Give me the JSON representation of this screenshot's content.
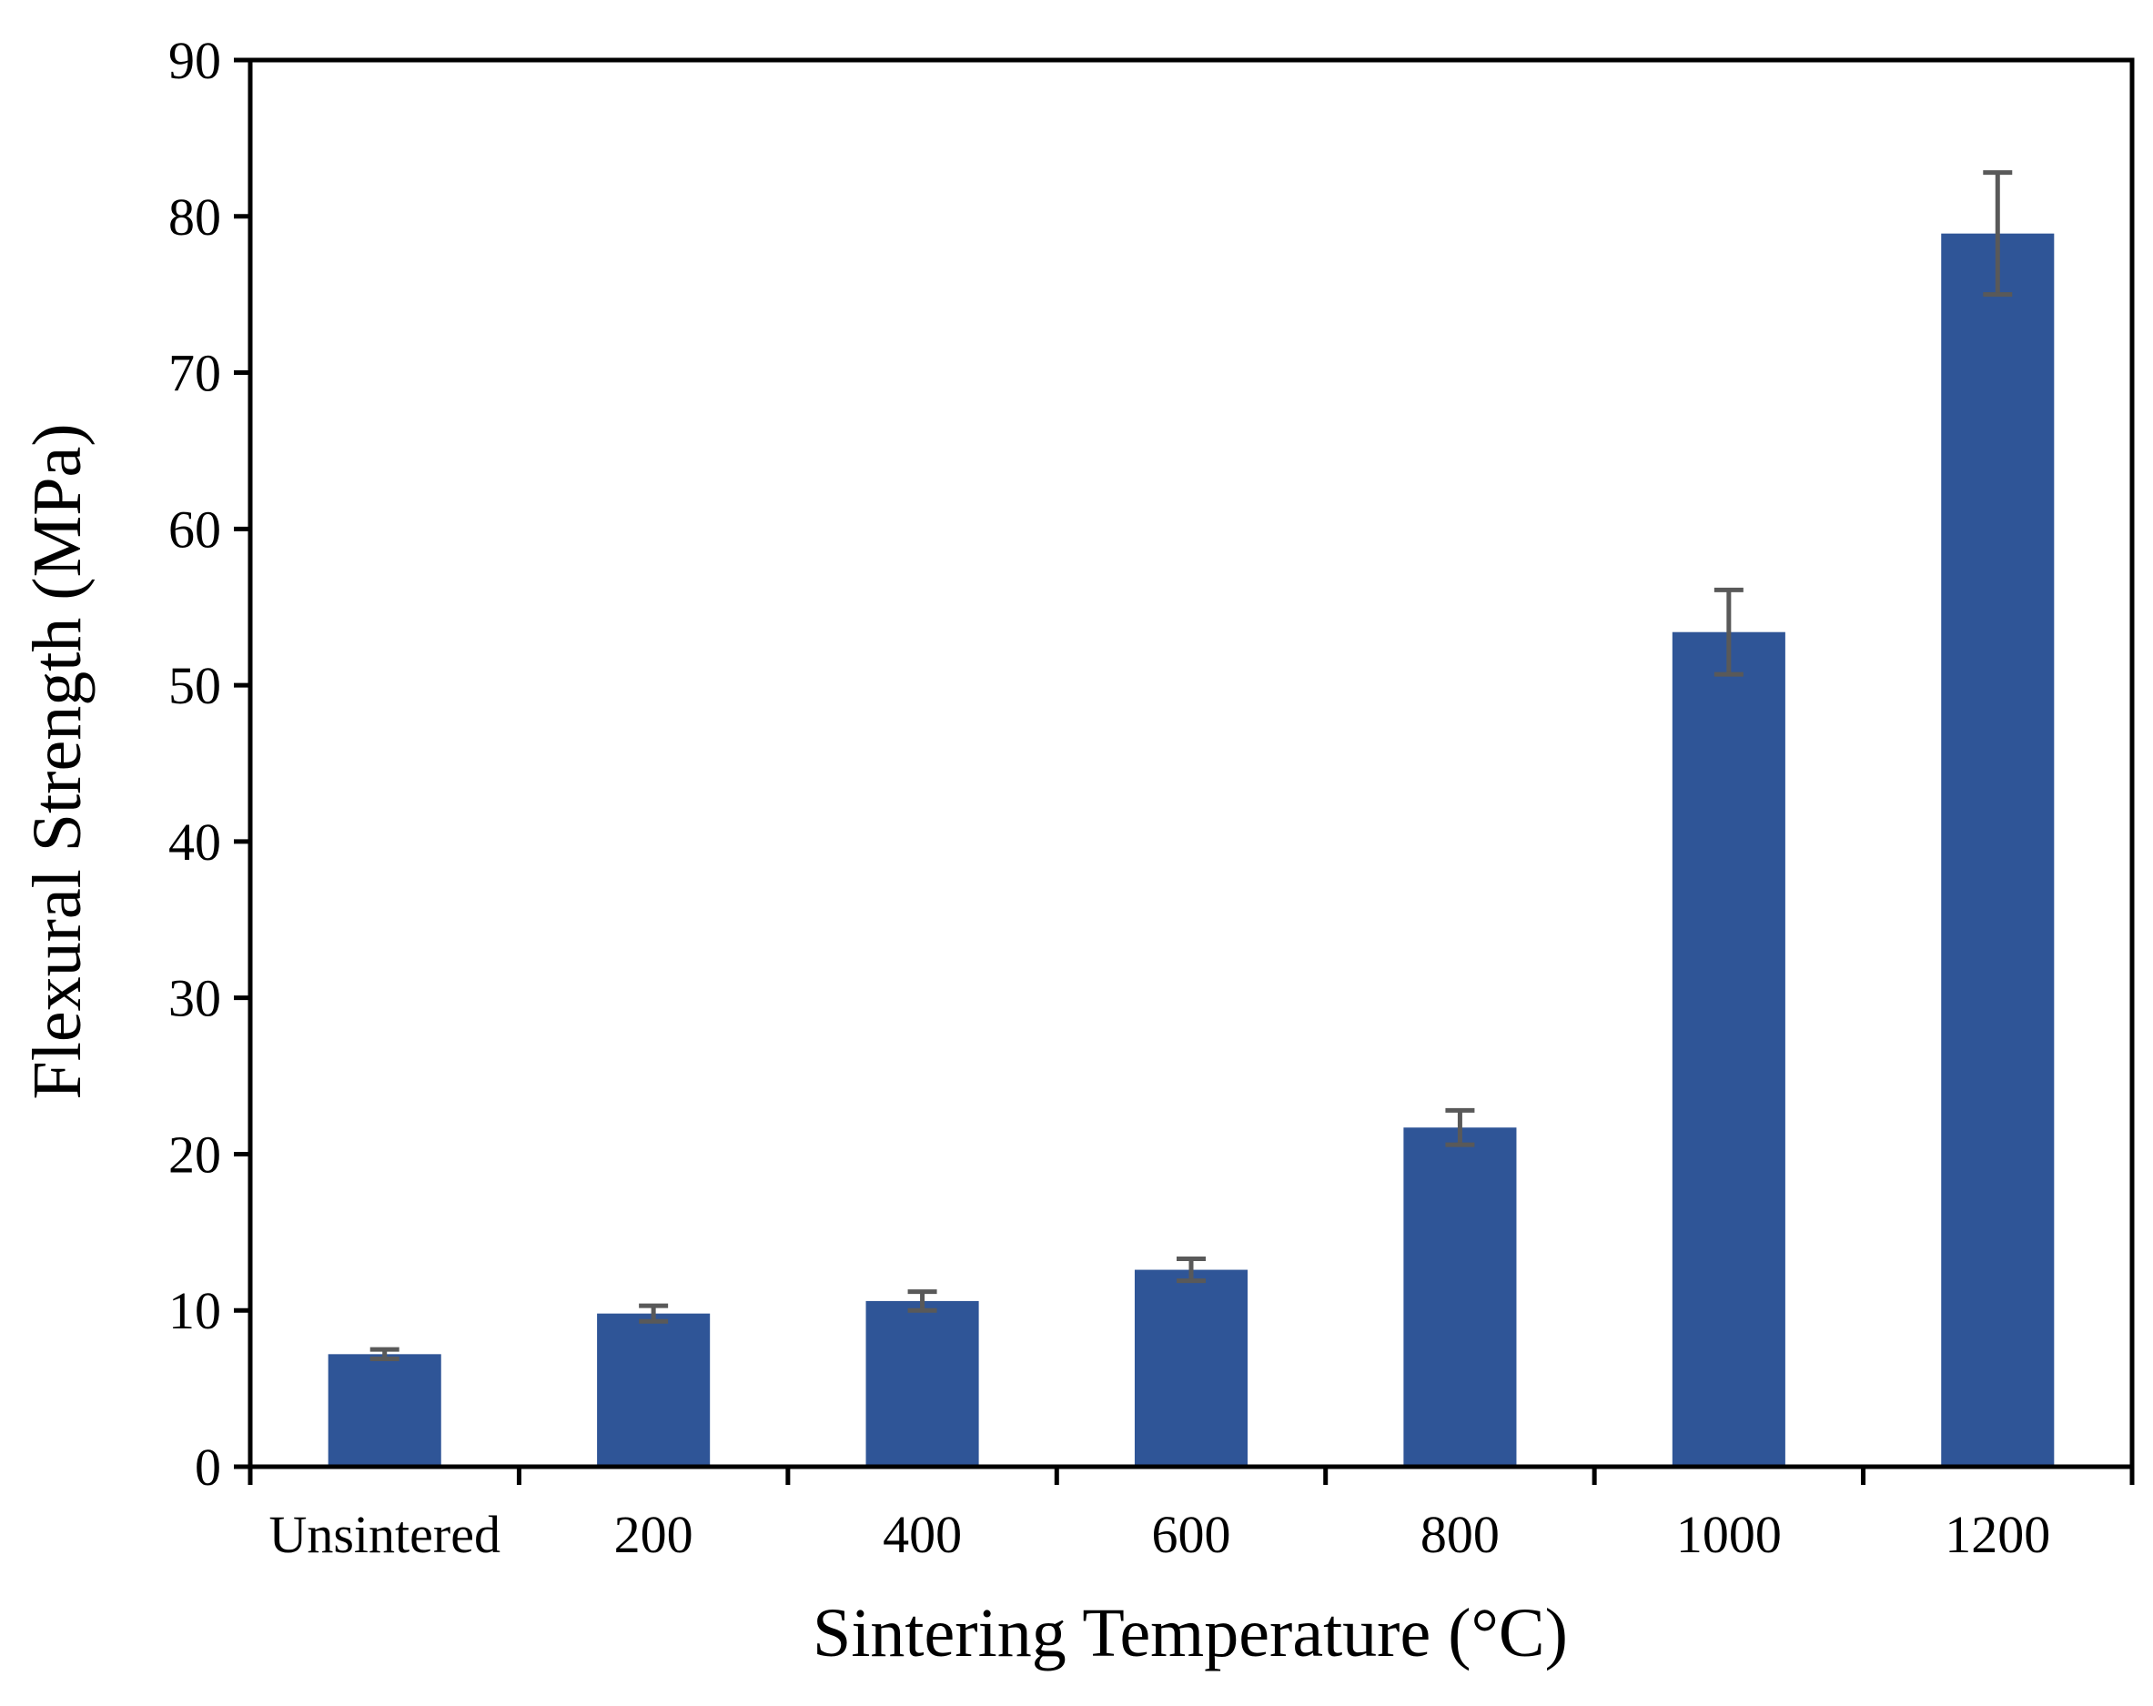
{
  "chart_data": {
    "type": "bar",
    "title": "",
    "xlabel": "Sintering Temperature (°C)",
    "ylabel": "Flexural Strength (MPa)",
    "categories": [
      "Unsintered",
      "200",
      "400",
      "600",
      "800",
      "1000",
      "1200"
    ],
    "values": [
      7.2,
      9.8,
      10.6,
      12.6,
      21.7,
      53.4,
      78.9
    ],
    "error": [
      0.3,
      0.5,
      0.6,
      0.7,
      1.1,
      2.7,
      3.9
    ],
    "ylim": [
      0,
      90
    ],
    "yticks": [
      "0",
      "10",
      "20",
      "30",
      "40",
      "50",
      "60",
      "70",
      "80",
      "90"
    ],
    "grid": false,
    "legend": "none",
    "colors": {
      "bar": "#2f5597",
      "error_bar": "#595959",
      "axis": "#000000"
    }
  }
}
